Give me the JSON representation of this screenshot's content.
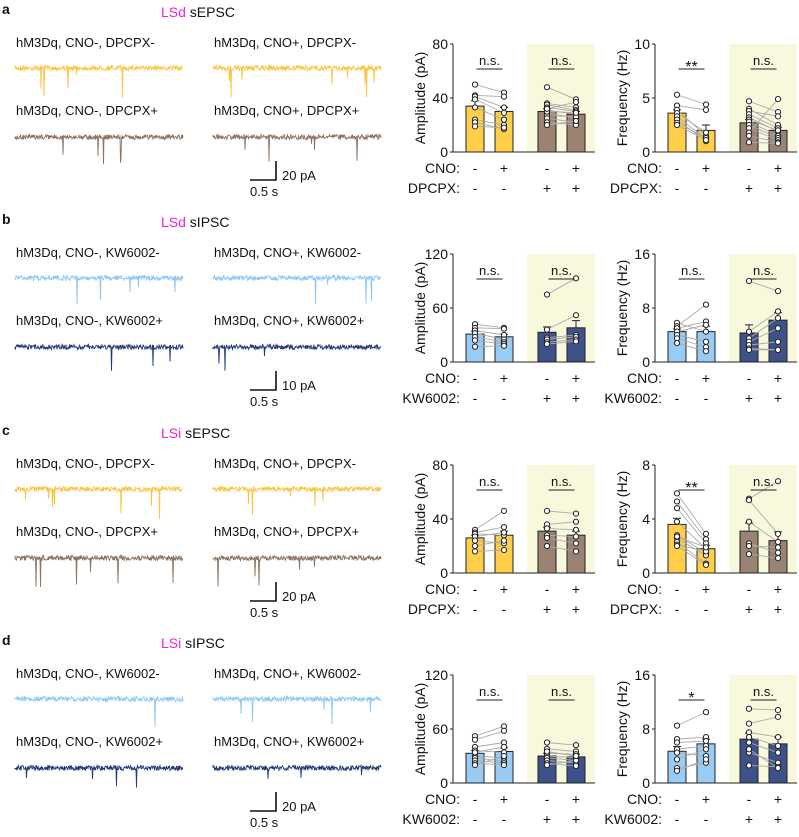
{
  "colors": {
    "region": "#EE22DD",
    "shade": "#F8F8DC",
    "line": "#AAAAAA",
    "axis": "#222222"
  },
  "chart_data": [
    {
      "panel": "a",
      "region": "LSd",
      "title": " sEPSC",
      "drug": "DPCPX",
      "traces": [
        {
          "label": "hM3Dq, CNO-, DPCPX-",
          "color": "#FCC33D"
        },
        {
          "label": "hM3Dq, CNO+, DPCPX-",
          "color": "#FCC33D"
        },
        {
          "label": "hM3Dq, CNO-, DPCPX+",
          "color": "#8C7362"
        },
        {
          "label": "hM3Dq, CNO+, DPCPX+",
          "color": "#8C7362"
        }
      ],
      "scale": {
        "y": "20 pA",
        "x": "0.5 s"
      },
      "rows": [
        {
          "label": "CNO:",
          "values": [
            "-",
            "+",
            "-",
            "+"
          ]
        },
        {
          "label": "DPCPX:",
          "values": [
            "-",
            "-",
            "+",
            "+"
          ]
        }
      ],
      "charts": [
        {
          "type": "bar",
          "ylabel": "Amplitude (pA)",
          "ylim": [
            0,
            80
          ],
          "ticks": [
            "0",
            "40",
            "80"
          ],
          "sig": [
            "n.s.",
            "n.s."
          ],
          "colors": [
            "#FFCF4A",
            "#9A8372"
          ],
          "means": [
            34,
            30,
            30,
            28
          ],
          "sems": [
            4,
            3,
            2,
            2
          ],
          "pairs": [
            [
              [
                50,
                44
              ],
              [
                42,
                41
              ],
              [
                41,
                33
              ],
              [
                39,
                29
              ],
              [
                33,
                24
              ],
              [
                24,
                20
              ],
              [
                22,
                17
              ],
              [
                19,
                18
              ]
            ],
            [
              [
                48,
                39
              ],
              [
                36,
                33
              ],
              [
                35,
                31
              ],
              [
                33,
                30
              ],
              [
                31,
                28
              ],
              [
                29,
                25
              ],
              [
                27,
                26
              ],
              [
                25,
                22
              ],
              [
                22,
                20
              ],
              [
                20,
                23
              ],
              [
                30,
                29
              ],
              [
                32,
                37
              ]
            ]
          ]
        },
        {
          "type": "bar",
          "ylabel": "Frequency (Hz)",
          "ylim": [
            0,
            10
          ],
          "ticks": [
            "0",
            "5",
            "10"
          ],
          "sig": [
            "**",
            "n.s."
          ],
          "colors": [
            "#FFCF4A",
            "#9A8372"
          ],
          "means": [
            3.6,
            2.0,
            2.7,
            2.0
          ],
          "sems": [
            0.3,
            0.5,
            0.3,
            0.3
          ],
          "pairs": [
            [
              [
                5.3,
                4.4
              ],
              [
                4.3,
                3.9
              ],
              [
                3.9,
                1.5
              ],
              [
                3.6,
                1.8
              ],
              [
                3.3,
                1.2
              ],
              [
                3.0,
                1.0
              ],
              [
                2.7,
                1.3
              ],
              [
                2.5,
                1.1
              ]
            ],
            [
              [
                4.7,
                3.7
              ],
              [
                4.0,
                2.5
              ],
              [
                3.8,
                3.3
              ],
              [
                3.5,
                2.2
              ],
              [
                3.2,
                1.9
              ],
              [
                3.0,
                2.0
              ],
              [
                2.8,
                1.5
              ],
              [
                2.5,
                1.3
              ],
              [
                2.2,
                1.1
              ],
              [
                1.8,
                4.9
              ],
              [
                1.5,
                0.9
              ],
              [
                0.9,
                0.8
              ]
            ]
          ]
        }
      ]
    },
    {
      "panel": "b",
      "region": "LSd",
      "title": " sIPSC",
      "drug": "KW6002",
      "traces": [
        {
          "label": "hM3Dq, CNO-, KW6002-",
          "color": "#8EC8F2"
        },
        {
          "label": "hM3Dq, CNO+, KW6002-",
          "color": "#8EC8F2"
        },
        {
          "label": "hM3Dq, CNO-, KW6002+",
          "color": "#22397A"
        },
        {
          "label": "hM3Dq, CNO+, KW6002+",
          "color": "#22397A"
        }
      ],
      "scale": {
        "y": "10 pA",
        "x": "0.5 s"
      },
      "rows": [
        {
          "label": "CNO:",
          "values": [
            "-",
            "+",
            "-",
            "+"
          ]
        },
        {
          "label": "KW6002:",
          "values": [
            "-",
            "-",
            "+",
            "+"
          ]
        }
      ],
      "charts": [
        {
          "type": "bar",
          "ylabel": "Amplitude (pA)",
          "ylim": [
            0,
            120
          ],
          "ticks": [
            "0",
            "60",
            "120"
          ],
          "sig": [
            "n.s.",
            "n.s."
          ],
          "colors": [
            "#99CCF5",
            "#3E5189"
          ],
          "means": [
            31,
            28,
            33,
            38
          ],
          "sems": [
            3,
            3,
            6,
            8
          ],
          "pairs": [
            [
              [
                42,
                38
              ],
              [
                38,
                37
              ],
              [
                35,
                30
              ],
              [
                32,
                25
              ],
              [
                28,
                22
              ],
              [
                24,
                20
              ],
              [
                17,
                18
              ]
            ],
            [
              [
                75,
                93
              ],
              [
                36,
                52
              ],
              [
                27,
                30
              ],
              [
                25,
                28
              ],
              [
                22,
                25
              ],
              [
                20,
                23
              ]
            ]
          ]
        },
        {
          "type": "bar",
          "ylabel": "Frequency (Hz)",
          "ylim": [
            0,
            16
          ],
          "ticks": [
            "0",
            "8",
            "16"
          ],
          "sig": [
            "n.s.",
            "n.s."
          ],
          "colors": [
            "#99CCF5",
            "#3E5189"
          ],
          "means": [
            4.5,
            4.5,
            4.3,
            6.2
          ],
          "sems": [
            0.4,
            0.8,
            1.2,
            1.1
          ],
          "pairs": [
            [
              [
                5.8,
                4.5
              ],
              [
                5.3,
                8.5
              ],
              [
                5.0,
                6.0
              ],
              [
                4.5,
                5.5
              ],
              [
                4.0,
                3.0
              ],
              [
                3.5,
                2.2
              ],
              [
                2.8,
                1.6
              ]
            ],
            [
              [
                12,
                10.5
              ],
              [
                4.5,
                7.5
              ],
              [
                3.5,
                6.5
              ],
              [
                3.0,
                5.0
              ],
              [
                2.5,
                3.0
              ],
              [
                2.0,
                1.8
              ],
              [
                1.8,
                1.8
              ]
            ]
          ]
        }
      ]
    },
    {
      "panel": "c",
      "region": "LSi",
      "title": " sEPSC",
      "drug": "DPCPX",
      "traces": [
        {
          "label": "hM3Dq, CNO-, DPCPX-",
          "color": "#FCC33D"
        },
        {
          "label": "hM3Dq, CNO+, DPCPX-",
          "color": "#FCC33D"
        },
        {
          "label": "hM3Dq, CNO-, DPCPX+",
          "color": "#8C7362"
        },
        {
          "label": "hM3Dq, CNO+, DPCPX+",
          "color": "#8C7362"
        }
      ],
      "scale": {
        "y": "20 pA",
        "x": "0.5 s"
      },
      "rows": [
        {
          "label": "CNO:",
          "values": [
            "-",
            "+",
            "-",
            "+"
          ]
        },
        {
          "label": "DPCPX:",
          "values": [
            "-",
            "-",
            "+",
            "+"
          ]
        }
      ],
      "charts": [
        {
          "type": "bar",
          "ylabel": "Amplitude (pA)",
          "ylim": [
            0,
            80
          ],
          "ticks": [
            "0",
            "40",
            "80"
          ],
          "sig": [
            "n.s.",
            "n.s."
          ],
          "colors": [
            "#FFCF4A",
            "#9A8372"
          ],
          "means": [
            26,
            28,
            31,
            28
          ],
          "sems": [
            2,
            3,
            3,
            3
          ],
          "pairs": [
            [
              [
                32,
                46
              ],
              [
                30,
                34
              ],
              [
                29,
                28
              ],
              [
                27,
                30
              ],
              [
                24,
                22
              ],
              [
                20,
                24
              ],
              [
                16,
                17
              ]
            ],
            [
              [
                46,
                44
              ],
              [
                36,
                38
              ],
              [
                33,
                32
              ],
              [
                28,
                27
              ],
              [
                26,
                22
              ],
              [
                20,
                16
              ]
            ]
          ]
        },
        {
          "type": "bar",
          "ylabel": "Frequency (Hz)",
          "ylim": [
            0,
            8
          ],
          "ticks": [
            "0",
            "4",
            "8"
          ],
          "sig": [
            "**",
            "n.s."
          ],
          "colors": [
            "#FFCF4A",
            "#9A8372"
          ],
          "means": [
            3.6,
            1.8,
            3.1,
            2.4
          ],
          "sems": [
            0.45,
            0.25,
            0.6,
            0.65
          ],
          "pairs": [
            [
              [
                5.9,
                2.9
              ],
              [
                5.3,
                2.5
              ],
              [
                4.8,
                2.2
              ],
              [
                3.8,
                1.8
              ],
              [
                2.8,
                1.5
              ],
              [
                2.6,
                1.3
              ],
              [
                2.3,
                0.7
              ],
              [
                2.1,
                1.6
              ],
              [
                2.7,
                1.9
              ],
              [
                2.0,
                0.6
              ]
            ],
            [
              [
                5.5,
                6.8
              ],
              [
                5.4,
                2.9
              ],
              [
                3.8,
                2.3
              ],
              [
                2.2,
                1.5
              ],
              [
                2.0,
                1.9
              ],
              [
                1.4,
                1.1
              ]
            ]
          ]
        }
      ]
    },
    {
      "panel": "d",
      "region": "LSi",
      "title": " sIPSC",
      "drug": "KW6002",
      "traces": [
        {
          "label": "hM3Dq, CNO-, KW6002-",
          "color": "#8EC8F2"
        },
        {
          "label": "hM3Dq, CNO+, KW6002-",
          "color": "#8EC8F2"
        },
        {
          "label": "hM3Dq, CNO-, KW6002+",
          "color": "#22397A"
        },
        {
          "label": "hM3Dq, CNO+, KW6002+",
          "color": "#22397A"
        }
      ],
      "scale": {
        "y": "20 pA",
        "x": "0.5 s"
      },
      "rows": [
        {
          "label": "CNO:",
          "values": [
            "-",
            "+",
            "-",
            "+"
          ]
        },
        {
          "label": "KW6002:",
          "values": [
            "-",
            "-",
            "+",
            "+"
          ]
        }
      ],
      "charts": [
        {
          "type": "bar",
          "ylabel": "Amplitude (pA)",
          "ylim": [
            0,
            120
          ],
          "ticks": [
            "0",
            "60",
            "120"
          ],
          "sig": [
            "n.s.",
            "n.s."
          ],
          "colors": [
            "#99CCF5",
            "#3E5189"
          ],
          "means": [
            33,
            35,
            30,
            29
          ],
          "sems": [
            3,
            4,
            3,
            3
          ],
          "pairs": [
            [
              [
                52,
                63
              ],
              [
                48,
                58
              ],
              [
                40,
                45
              ],
              [
                36,
                34
              ],
              [
                30,
                28
              ],
              [
                28,
                24
              ],
              [
                25,
                22
              ],
              [
                22,
                20
              ],
              [
                20,
                30
              ],
              [
                34,
                40
              ]
            ],
            [
              [
                45,
                42
              ],
              [
                38,
                35
              ],
              [
                33,
                32
              ],
              [
                30,
                28
              ],
              [
                28,
                25
              ],
              [
                25,
                22
              ],
              [
                22,
                19
              ],
              [
                20,
                25
              ],
              [
                35,
                30
              ]
            ]
          ]
        },
        {
          "type": "bar",
          "ylabel": "Frequency (Hz)",
          "ylim": [
            0,
            16
          ],
          "ticks": [
            "0",
            "8",
            "16"
          ],
          "sig": [
            "*",
            "n.s."
          ],
          "colors": [
            "#99CCF5",
            "#3E5189"
          ],
          "means": [
            4.7,
            5.8,
            6.5,
            5.8
          ],
          "sems": [
            0.7,
            0.7,
            0.9,
            1.0
          ],
          "pairs": [
            [
              [
                8.5,
                10.5
              ],
              [
                6.5,
                6.8
              ],
              [
                6.0,
                6.2
              ],
              [
                5.0,
                5.5
              ],
              [
                4.5,
                4.0
              ],
              [
                3.5,
                5.0
              ],
              [
                2.2,
                3.0
              ],
              [
                1.8,
                3.5
              ]
            ],
            [
              [
                11,
                10.8
              ],
              [
                8.8,
                9.8
              ],
              [
                7.5,
                6.8
              ],
              [
                6.8,
                5.5
              ],
              [
                6.0,
                4.5
              ],
              [
                4.5,
                3.0
              ],
              [
                2.6,
                2.4
              ],
              [
                5.0,
                2.2
              ]
            ]
          ]
        }
      ]
    }
  ]
}
